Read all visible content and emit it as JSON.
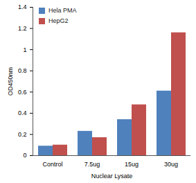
{
  "chart_data": {
    "type": "bar",
    "categories": [
      "Control",
      "7.5ug",
      "15ug",
      "30ug"
    ],
    "series": [
      {
        "name": "Hela PMA",
        "color": "#4f81bd",
        "values": [
          0.09,
          0.23,
          0.34,
          0.61
        ]
      },
      {
        "name": "HepG2",
        "color": "#c0504d",
        "values": [
          0.1,
          0.17,
          0.48,
          1.16
        ]
      }
    ],
    "xlabel": "Nuclear Lysate",
    "ylabel": "OD450nm",
    "ylim": [
      0,
      1.4
    ],
    "yticks": [
      0,
      0.2,
      0.4,
      0.6,
      0.8,
      1,
      1.2,
      1.4
    ],
    "grid": false,
    "legend": "upper left"
  }
}
